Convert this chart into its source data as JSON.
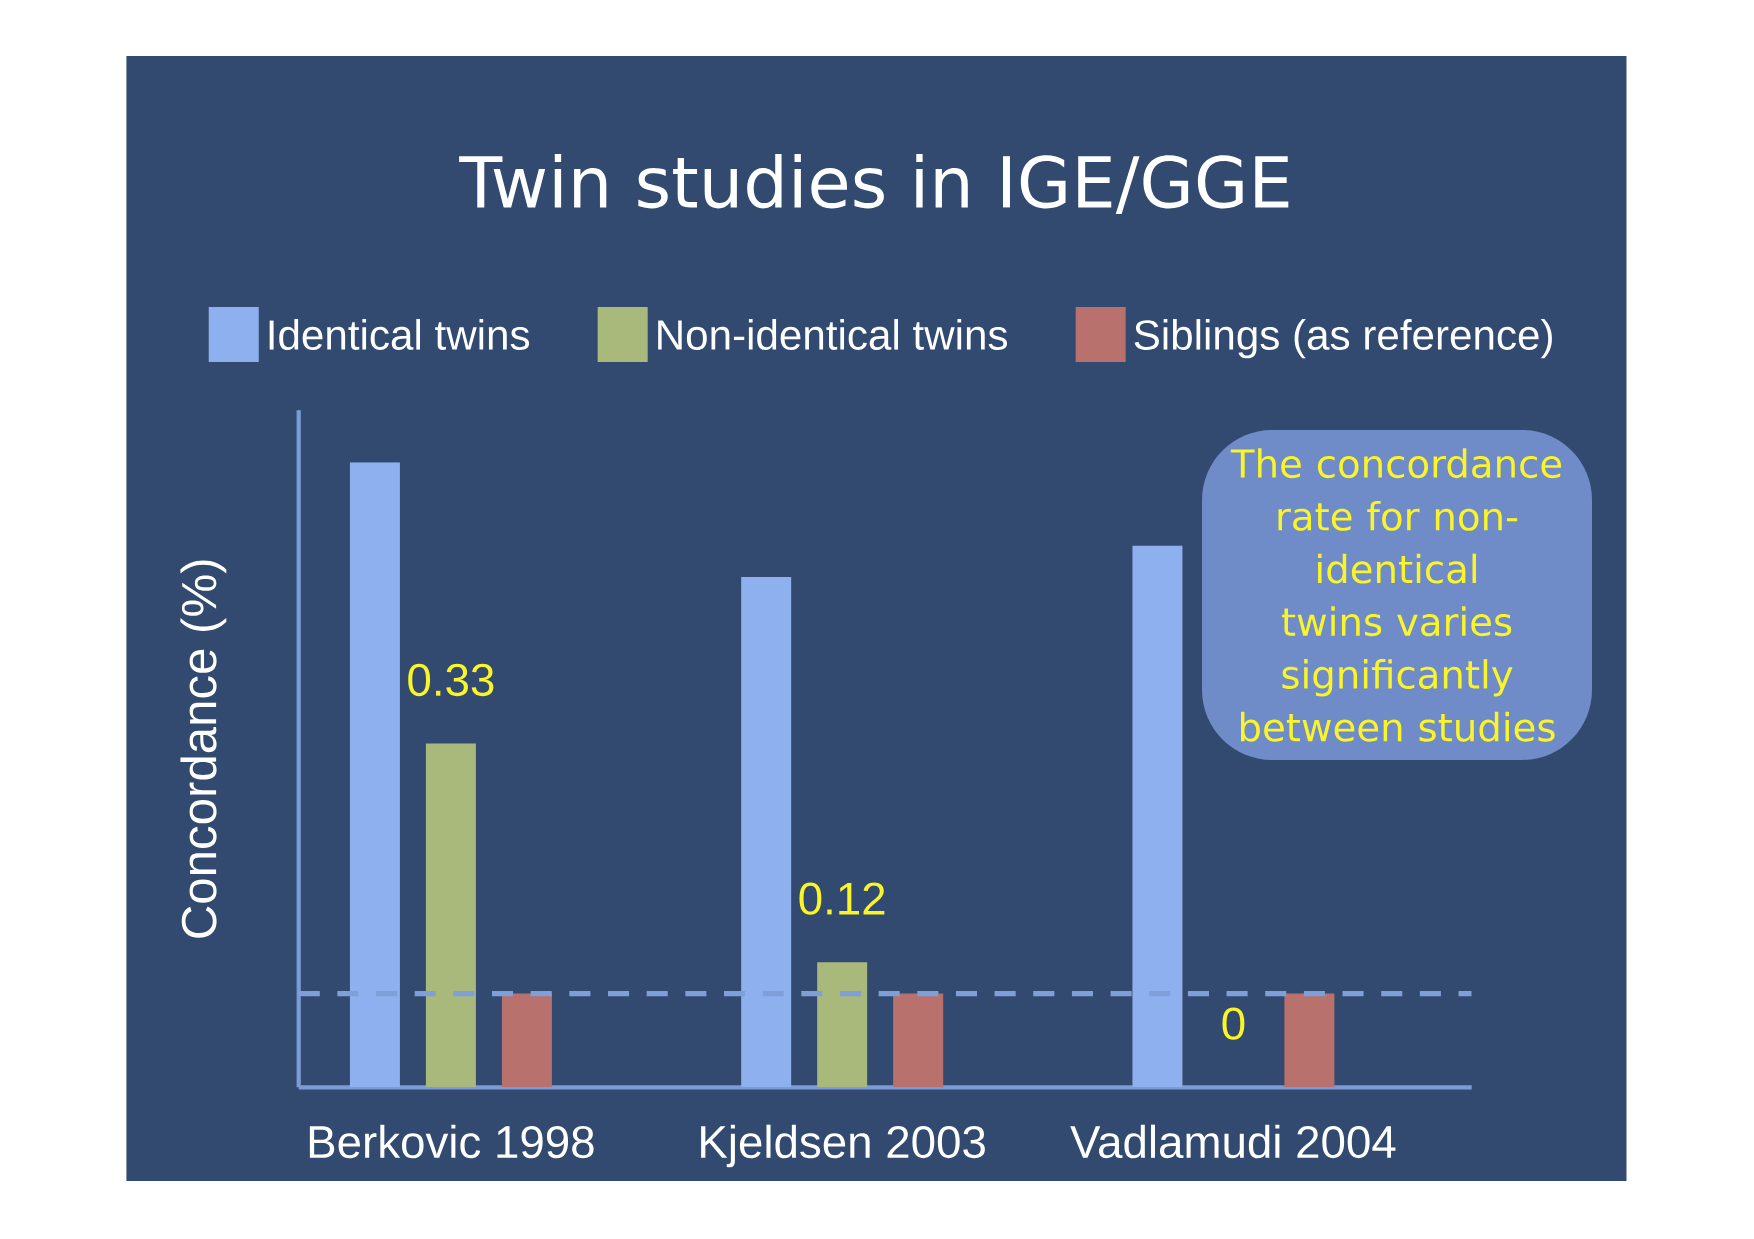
{
  "chart_data": {
    "type": "bar",
    "title": "Twin studies in IGE/GGE",
    "ylabel": "Concordance (%)",
    "categories": [
      "Berkovic 1998",
      "Kjeldsen 2003",
      "Vadlamudi 2004"
    ],
    "series": [
      {
        "name": "Identical twins",
        "color": "#8fb0ee",
        "values": [
          0.6,
          0.49,
          0.52
        ]
      },
      {
        "name": "Non-identical twins",
        "color": "#a9b97c",
        "values": [
          0.33,
          0.12,
          0
        ],
        "value_labels": [
          "0.33",
          "0.12",
          "0"
        ]
      },
      {
        "name": "Siblings (as reference)",
        "color": "#b8716c",
        "values": [
          0.09,
          0.09,
          0.09
        ]
      }
    ],
    "ylim": [
      0,
      0.65
    ],
    "tick_labels": "x",
    "legend": "top",
    "grid": false,
    "ref_lines": [
      {
        "axis": "y",
        "value": 0.09,
        "color": "#7f9fd8",
        "line_style": "dashed"
      }
    ],
    "annotations": [
      "The concordance rate for non-identical twins varies significantly between studies"
    ]
  }
}
